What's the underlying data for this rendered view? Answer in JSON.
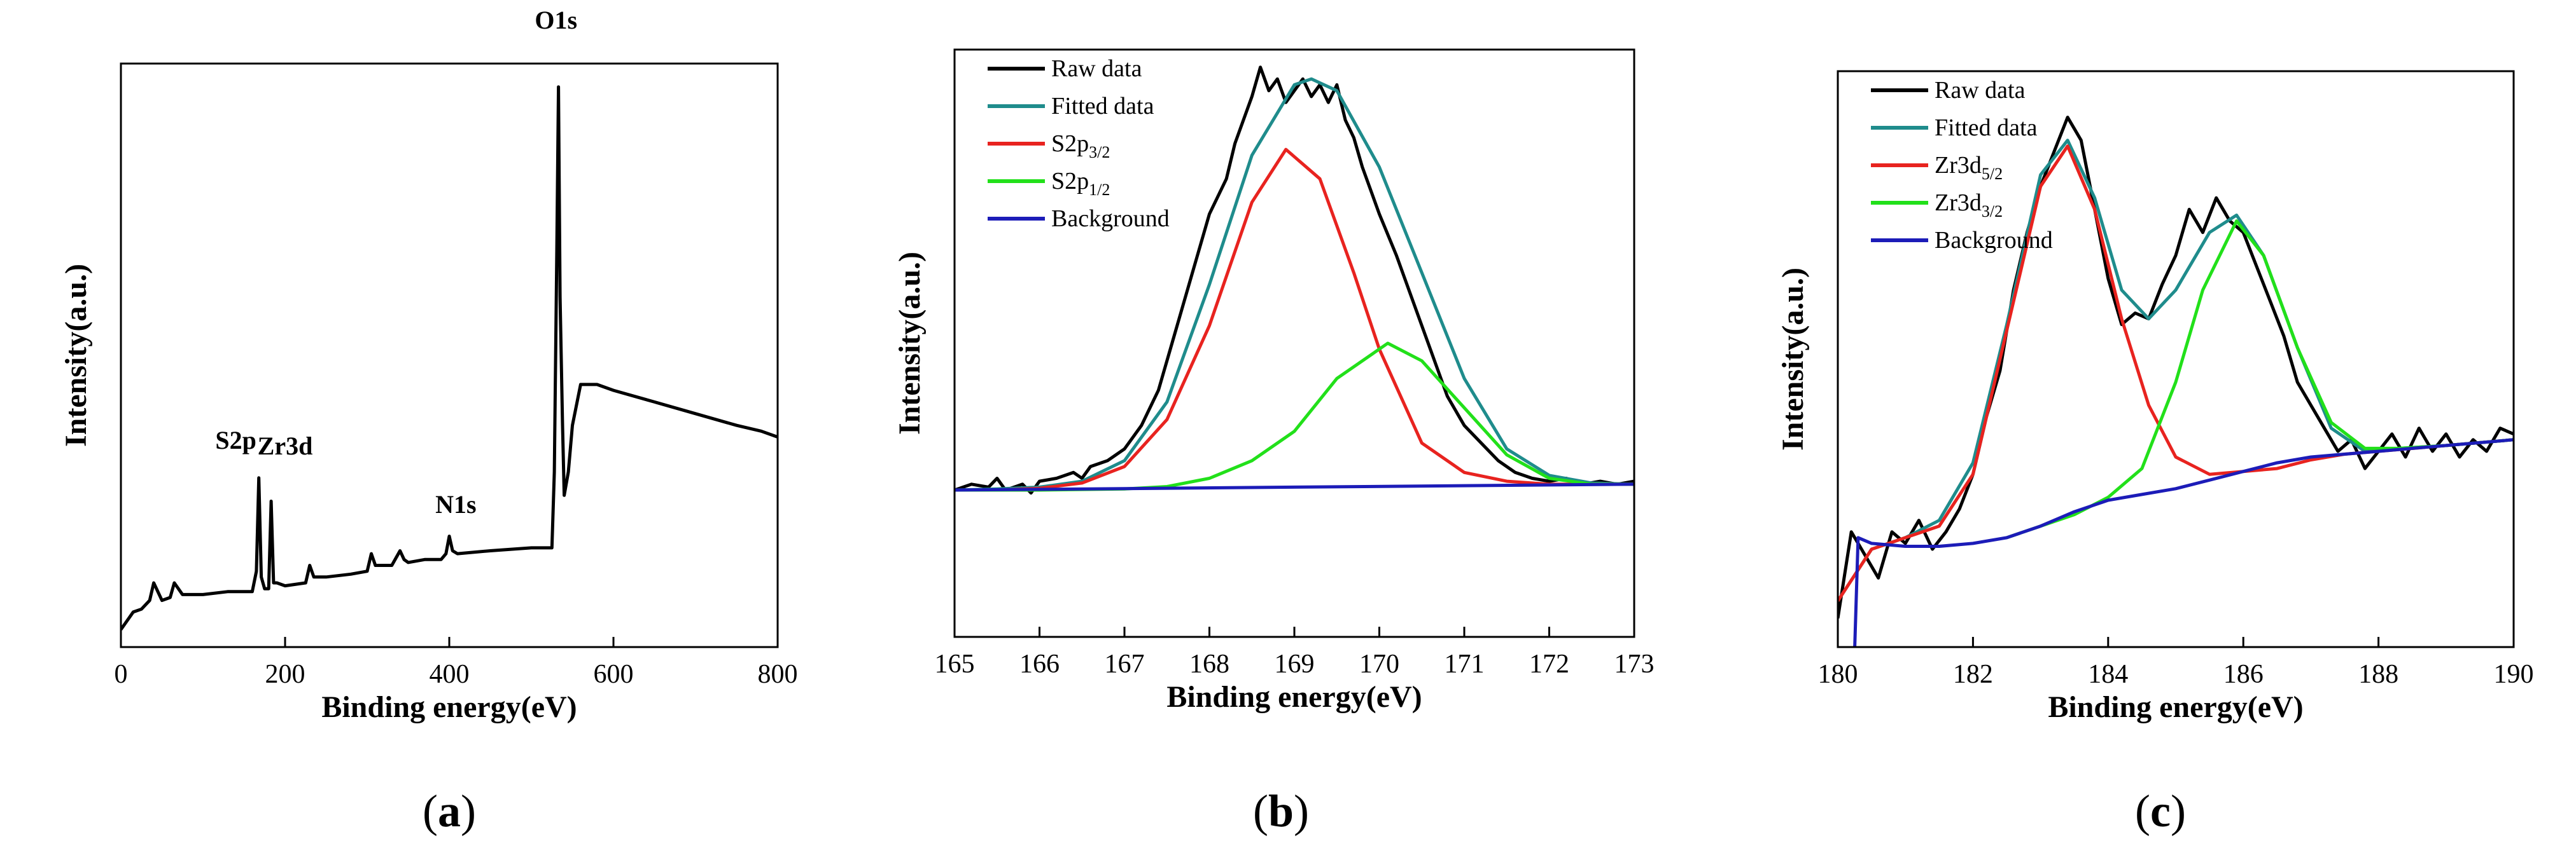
{
  "chart_data": [
    {
      "type": "line",
      "panel": "a",
      "xlabel": "Binding energy(eV)",
      "ylabel": "Intensity(a.u.)",
      "xlim": [
        0,
        800
      ],
      "ylim": [
        0,
        1
      ],
      "xticks": [
        0,
        200,
        400,
        600,
        800
      ],
      "y_tick_labels_shown": false,
      "series": [
        {
          "color": "#000000",
          "x": [
            0,
            15,
            25,
            35,
            40,
            50,
            60,
            65,
            75,
            100,
            130,
            160,
            165,
            168,
            171,
            175,
            180,
            183,
            186,
            190,
            200,
            225,
            230,
            235,
            250,
            280,
            300,
            305,
            310,
            330,
            340,
            345,
            350,
            370,
            390,
            396,
            400,
            404,
            410,
            450,
            500,
            525,
            528,
            531,
            533,
            535,
            538,
            540,
            545,
            550,
            560,
            580,
            600,
            650,
            700,
            750,
            780,
            800
          ],
          "y": [
            0.03,
            0.06,
            0.065,
            0.08,
            0.11,
            0.08,
            0.085,
            0.11,
            0.09,
            0.09,
            0.095,
            0.095,
            0.13,
            0.29,
            0.12,
            0.1,
            0.1,
            0.25,
            0.11,
            0.11,
            0.105,
            0.11,
            0.14,
            0.12,
            0.12,
            0.125,
            0.13,
            0.16,
            0.14,
            0.14,
            0.165,
            0.15,
            0.145,
            0.15,
            0.15,
            0.16,
            0.19,
            0.165,
            0.16,
            0.165,
            0.17,
            0.17,
            0.3,
            0.68,
            0.96,
            0.6,
            0.38,
            0.26,
            0.3,
            0.38,
            0.45,
            0.45,
            0.44,
            0.42,
            0.4,
            0.38,
            0.37,
            0.36
          ]
        }
      ],
      "annotations": [
        {
          "text": "S2p",
          "x": 140,
          "y": 0.34
        },
        {
          "text": "Zr3d",
          "x": 200,
          "y": 0.33
        },
        {
          "text": "N1s",
          "x": 408,
          "y": 0.23
        },
        {
          "text": "O1s",
          "x": 530,
          "y": 1.06
        }
      ],
      "caption": "(a)"
    },
    {
      "type": "line",
      "panel": "b",
      "xlabel": "Binding energy(eV)",
      "ylabel": "Intensity(a.u.)",
      "xlim": [
        165,
        173
      ],
      "ylim": [
        0,
        1
      ],
      "xticks": [
        165,
        166,
        167,
        168,
        169,
        170,
        171,
        172,
        173
      ],
      "y_tick_labels_shown": false,
      "legend": {
        "placement": "top-left"
      },
      "series": [
        {
          "name": "Raw data",
          "color": "#000000",
          "x": [
            165,
            165.2,
            165.4,
            165.5,
            165.6,
            165.8,
            165.9,
            166.0,
            166.2,
            166.4,
            166.5,
            166.6,
            166.8,
            167.0,
            167.2,
            167.4,
            167.6,
            167.8,
            168.0,
            168.2,
            168.3,
            168.5,
            168.6,
            168.7,
            168.8,
            168.9,
            169.0,
            169.1,
            169.2,
            169.3,
            169.4,
            169.5,
            169.6,
            169.7,
            169.8,
            169.9,
            170.0,
            170.2,
            170.4,
            170.6,
            170.8,
            171.0,
            171.2,
            171.4,
            171.6,
            171.8,
            172.0,
            172.2,
            172.4,
            172.6,
            172.8,
            173.0
          ],
          "y": [
            0.25,
            0.26,
            0.255,
            0.27,
            0.25,
            0.26,
            0.245,
            0.265,
            0.27,
            0.28,
            0.27,
            0.29,
            0.3,
            0.32,
            0.36,
            0.42,
            0.52,
            0.62,
            0.72,
            0.78,
            0.84,
            0.92,
            0.97,
            0.93,
            0.95,
            0.91,
            0.93,
            0.95,
            0.92,
            0.94,
            0.91,
            0.94,
            0.88,
            0.85,
            0.8,
            0.76,
            0.72,
            0.65,
            0.57,
            0.49,
            0.41,
            0.36,
            0.33,
            0.3,
            0.28,
            0.27,
            0.265,
            0.27,
            0.26,
            0.265,
            0.26,
            0.265
          ]
        },
        {
          "name": "Fitted data",
          "color": "#1f8c8c",
          "x": [
            165,
            165.5,
            166,
            166.5,
            167,
            167.5,
            168,
            168.5,
            169.0,
            169.2,
            169.5,
            170,
            170.5,
            171,
            171.5,
            172,
            172.5,
            173
          ],
          "y": [
            0.25,
            0.252,
            0.255,
            0.265,
            0.3,
            0.4,
            0.6,
            0.82,
            0.94,
            0.95,
            0.93,
            0.8,
            0.62,
            0.44,
            0.32,
            0.275,
            0.262,
            0.26
          ]
        },
        {
          "name": "S2p3/2",
          "color": "#e8231f",
          "x": [
            165,
            165.5,
            166,
            166.5,
            167,
            167.5,
            168,
            168.5,
            168.9,
            169.3,
            169.7,
            170,
            170.5,
            171,
            171.5,
            172,
            172.5,
            173
          ],
          "y": [
            0.25,
            0.25,
            0.253,
            0.262,
            0.29,
            0.37,
            0.53,
            0.74,
            0.83,
            0.78,
            0.62,
            0.49,
            0.33,
            0.28,
            0.265,
            0.26,
            0.26,
            0.26
          ]
        },
        {
          "name": "S2p1/2",
          "color": "#22e01a",
          "x": [
            165,
            166,
            167,
            167.5,
            168,
            168.5,
            169,
            169.5,
            170.1,
            170.5,
            171,
            171.5,
            172,
            172.5,
            173
          ],
          "y": [
            0.25,
            0.25,
            0.252,
            0.256,
            0.27,
            0.3,
            0.35,
            0.44,
            0.5,
            0.47,
            0.39,
            0.31,
            0.27,
            0.26,
            0.26
          ]
        },
        {
          "name": "Background",
          "color": "#1c1cb8",
          "x": [
            165,
            173
          ],
          "y": [
            0.25,
            0.26
          ]
        }
      ],
      "caption": "(b)"
    },
    {
      "type": "line",
      "panel": "c",
      "xlabel": "Binding energy(eV)",
      "ylabel": "Intensity(a.u.)",
      "xlim": [
        180,
        190
      ],
      "ylim": [
        0,
        1
      ],
      "xticks": [
        180,
        182,
        184,
        186,
        188,
        190
      ],
      "y_tick_labels_shown": false,
      "legend": {
        "placement": "top-left"
      },
      "series": [
        {
          "name": "Raw data",
          "color": "#000000",
          "x": [
            180,
            180.2,
            180.3,
            180.4,
            180.6,
            180.8,
            181.0,
            181.2,
            181.4,
            181.6,
            181.8,
            182.0,
            182.2,
            182.4,
            182.6,
            182.8,
            183.0,
            183.2,
            183.4,
            183.6,
            183.8,
            184.0,
            184.2,
            184.4,
            184.6,
            184.8,
            185.0,
            185.2,
            185.4,
            185.6,
            185.8,
            186.0,
            186.2,
            186.4,
            186.6,
            186.8,
            187.0,
            187.2,
            187.4,
            187.6,
            187.8,
            188.0,
            188.2,
            188.4,
            188.6,
            188.8,
            189.0,
            189.2,
            189.4,
            189.6,
            189.8,
            190.0
          ],
          "y": [
            0.05,
            0.2,
            0.18,
            0.16,
            0.12,
            0.2,
            0.18,
            0.22,
            0.17,
            0.2,
            0.24,
            0.3,
            0.4,
            0.48,
            0.62,
            0.72,
            0.8,
            0.86,
            0.92,
            0.88,
            0.76,
            0.64,
            0.56,
            0.58,
            0.57,
            0.63,
            0.68,
            0.76,
            0.72,
            0.78,
            0.74,
            0.72,
            0.66,
            0.6,
            0.54,
            0.46,
            0.42,
            0.38,
            0.34,
            0.36,
            0.31,
            0.34,
            0.37,
            0.33,
            0.38,
            0.34,
            0.37,
            0.33,
            0.36,
            0.34,
            0.38,
            0.37
          ]
        },
        {
          "name": "Fitted data",
          "color": "#1f8c8c",
          "x": [
            180,
            180.5,
            181,
            181.5,
            182,
            182.5,
            183,
            183.4,
            183.8,
            184.2,
            184.6,
            185.0,
            185.5,
            185.9,
            186.3,
            186.8,
            187.3,
            187.8,
            188.3,
            189,
            190
          ],
          "y": [
            0.08,
            0.17,
            0.19,
            0.22,
            0.32,
            0.56,
            0.82,
            0.88,
            0.78,
            0.62,
            0.57,
            0.62,
            0.72,
            0.75,
            0.68,
            0.52,
            0.38,
            0.34,
            0.345,
            0.35,
            0.36
          ]
        },
        {
          "name": "Zr3d5/2",
          "color": "#e8231f",
          "x": [
            180,
            180.5,
            181,
            181.5,
            182,
            182.5,
            183,
            183.4,
            183.8,
            184.2,
            184.6,
            185.0,
            185.5,
            186,
            186.5,
            187,
            187.5,
            188,
            189,
            190
          ],
          "y": [
            0.08,
            0.17,
            0.19,
            0.21,
            0.3,
            0.55,
            0.8,
            0.87,
            0.76,
            0.57,
            0.42,
            0.33,
            0.3,
            0.305,
            0.31,
            0.325,
            0.335,
            0.34,
            0.35,
            0.36
          ]
        },
        {
          "name": "Zr3d3/2",
          "color": "#22e01a",
          "x": [
            182.5,
            183,
            183.5,
            184,
            184.5,
            185,
            185.4,
            185.9,
            186.3,
            186.8,
            187.3,
            187.8,
            188.3,
            189,
            190
          ],
          "y": [
            0.19,
            0.21,
            0.23,
            0.26,
            0.31,
            0.46,
            0.62,
            0.74,
            0.68,
            0.52,
            0.39,
            0.345,
            0.345,
            0.35,
            0.36
          ]
        },
        {
          "name": "Background",
          "color": "#1c1cb8",
          "x": [
            180.25,
            180.3,
            180.5,
            181,
            181.5,
            182,
            182.5,
            183,
            183.5,
            184,
            184.5,
            185,
            185.5,
            186,
            186.5,
            187,
            187.5,
            188,
            188.5,
            189,
            190
          ],
          "y": [
            0.0,
            0.19,
            0.18,
            0.175,
            0.175,
            0.18,
            0.19,
            0.21,
            0.235,
            0.255,
            0.265,
            0.275,
            0.29,
            0.305,
            0.32,
            0.33,
            0.335,
            0.34,
            0.345,
            0.35,
            0.36
          ]
        }
      ],
      "caption": "(c)"
    }
  ]
}
